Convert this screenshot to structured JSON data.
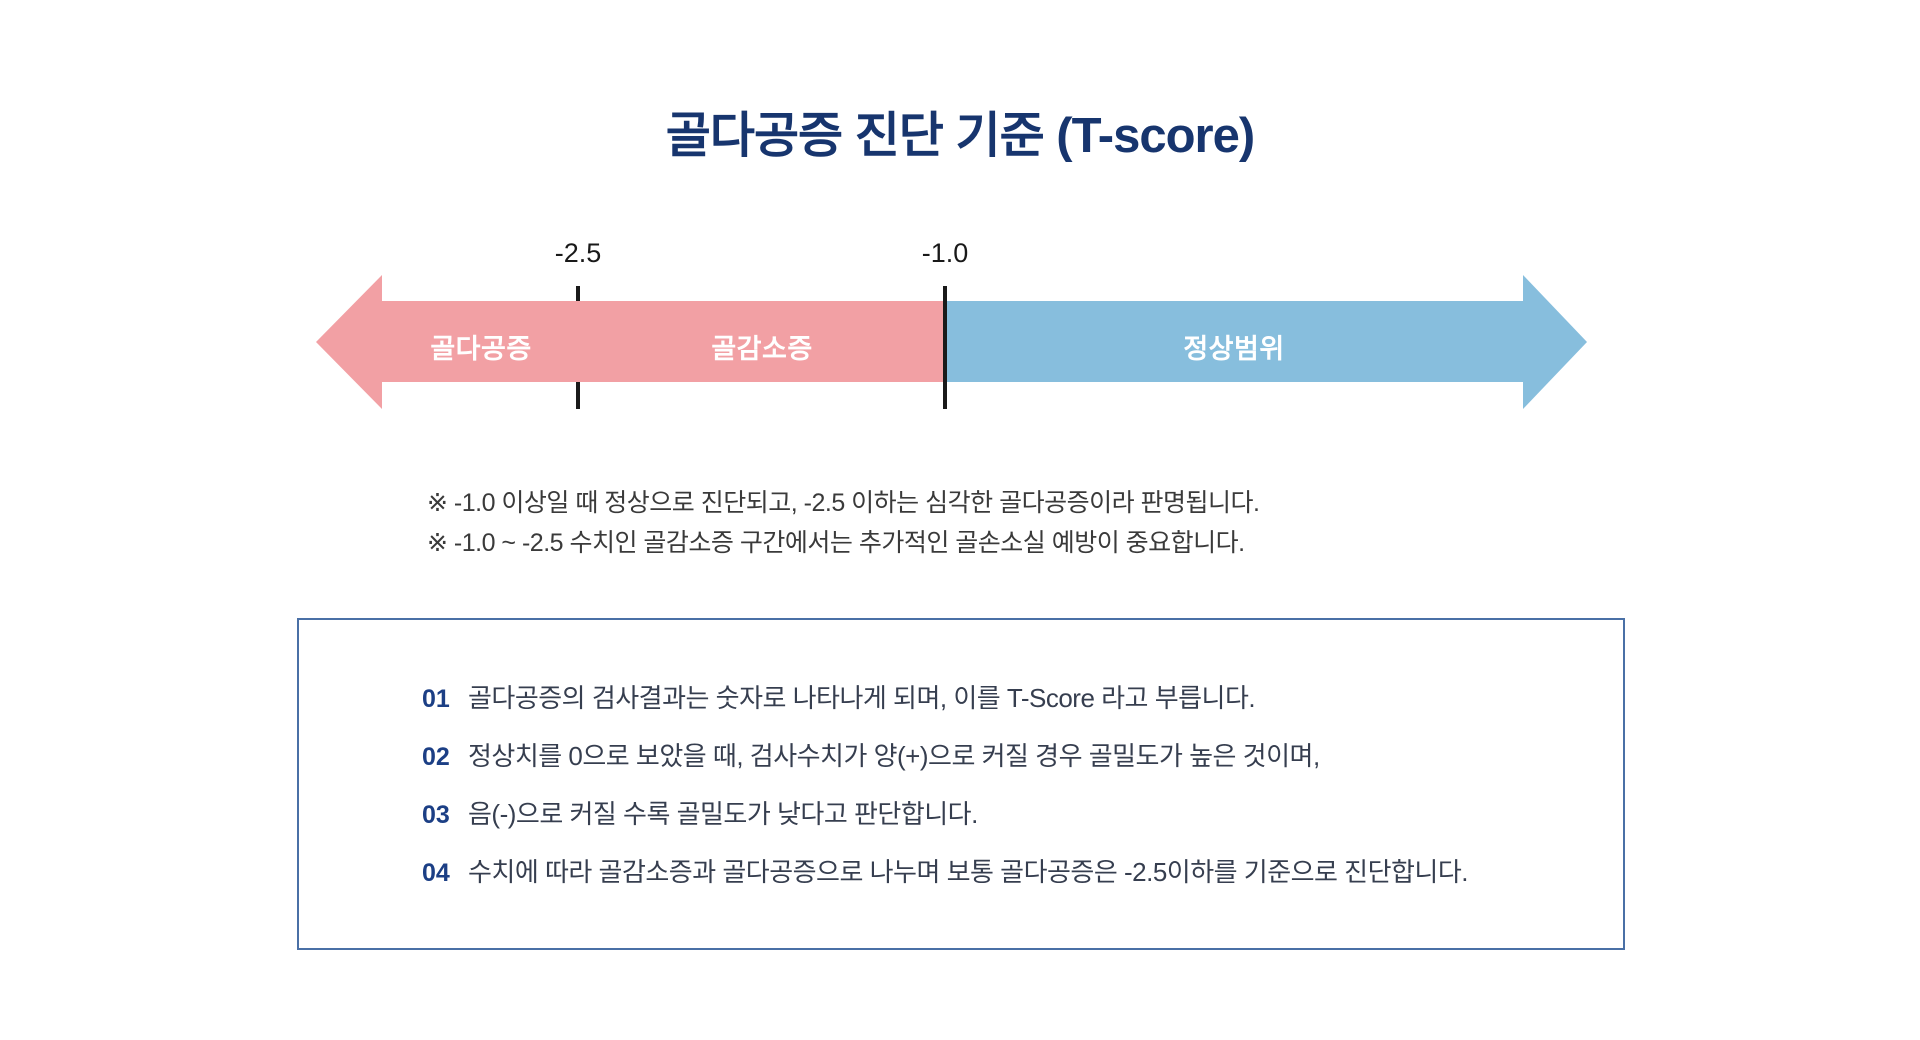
{
  "title": "골다공증 진단 기준 (T-score)",
  "diagram": {
    "tick_labels": [
      {
        "value": "-2.5"
      },
      {
        "value": "-1.0"
      }
    ],
    "segments": [
      {
        "label": "골다공증",
        "range": "≤ -2.5",
        "color": "#F2A0A4"
      },
      {
        "label": "골감소증",
        "range": "-2.5 ~ -1.0",
        "color": "#F2A0A4"
      },
      {
        "label": "정상범위",
        "range": "≥ -1.0",
        "color": "#87BEDD"
      }
    ]
  },
  "notes": [
    "※ -1.0 이상일 때 정상으로 진단되고, -2.5 이하는 심각한 골다공증이라 판명됩니다.",
    "※ -1.0 ~ -2.5 수치인 골감소증 구간에서는 추가적인 골손소실 예방이 중요합니다."
  ],
  "info_box": {
    "items": [
      {
        "num": "01",
        "text": "골다공증의 검사결과는 숫자로 나타나게 되며, 이를 T-Score 라고 부릅니다."
      },
      {
        "num": "02",
        "text": "정상치를 0으로 보았을 때, 검사수치가 양(+)으로 커질 경우 골밀도가 높은 것이며,"
      },
      {
        "num": "03",
        "text": "음(-)으로 커질 수록 골밀도가 낮다고 판단합니다."
      },
      {
        "num": "04",
        "text": "수치에 따라 골감소증과 골다공증으로 나누며 보통 골다공증은 -2.5이하를 기준으로 진단합니다."
      }
    ]
  },
  "colors": {
    "title_navy": "#17356E",
    "list_number_navy": "#1C3F85",
    "segment_pink": "#F2A0A4",
    "segment_blue": "#87BEDD",
    "box_border_blue": "#4A70A6",
    "tick_black": "#1A1A1A",
    "note_text": "#3A3A3A",
    "list_text": "#363E4F"
  }
}
